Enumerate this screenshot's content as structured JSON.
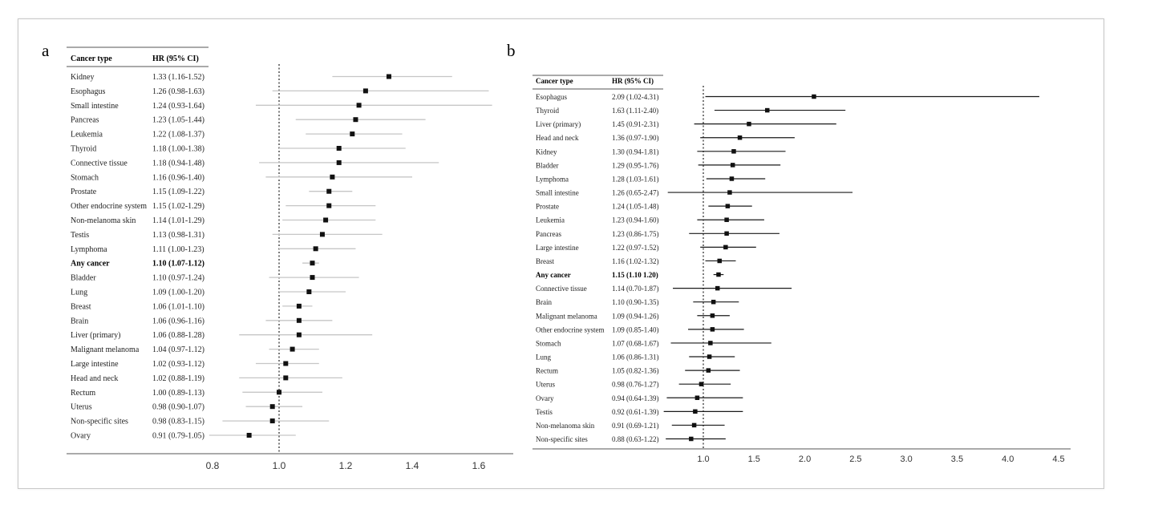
{
  "chart_data": [
    {
      "panel": "a",
      "type": "forest",
      "columns": [
        "Cancer type",
        "HR (95% CI)"
      ],
      "xlim": [
        0.7,
        1.65
      ],
      "xticks": [
        "0.8",
        "1.0",
        "1.2",
        "1.4",
        "1.6"
      ],
      "reference": 1.0,
      "rows": [
        {
          "label": "Kidney",
          "ci_text": "1.33 (1.16-1.52)",
          "hr": 1.33,
          "lo": 1.16,
          "hi": 1.52
        },
        {
          "label": "Esophagus",
          "ci_text": "1.26 (0.98-1.63)",
          "hr": 1.26,
          "lo": 0.98,
          "hi": 1.63
        },
        {
          "label": "Small intestine",
          "ci_text": "1.24 (0.93-1.64)",
          "hr": 1.24,
          "lo": 0.93,
          "hi": 1.64
        },
        {
          "label": "Pancreas",
          "ci_text": "1.23 (1.05-1.44)",
          "hr": 1.23,
          "lo": 1.05,
          "hi": 1.44
        },
        {
          "label": "Leukemia",
          "ci_text": "1.22 (1.08-1.37)",
          "hr": 1.22,
          "lo": 1.08,
          "hi": 1.37
        },
        {
          "label": "Thyroid",
          "ci_text": "1.18 (1.00-1.38)",
          "hr": 1.18,
          "lo": 1.0,
          "hi": 1.38
        },
        {
          "label": "Connective tissue",
          "ci_text": "1.18 (0.94-1.48)",
          "hr": 1.18,
          "lo": 0.94,
          "hi": 1.48
        },
        {
          "label": "Stomach",
          "ci_text": "1.16 (0.96-1.40)",
          "hr": 1.16,
          "lo": 0.96,
          "hi": 1.4
        },
        {
          "label": "Prostate",
          "ci_text": "1.15 (1.09-1.22)",
          "hr": 1.15,
          "lo": 1.09,
          "hi": 1.22
        },
        {
          "label": "Other endocrine system",
          "ci_text": "1.15 (1.02-1.29)",
          "hr": 1.15,
          "lo": 1.02,
          "hi": 1.29
        },
        {
          "label": "Non-melanoma skin",
          "ci_text": "1.14 (1.01-1.29)",
          "hr": 1.14,
          "lo": 1.01,
          "hi": 1.29
        },
        {
          "label": "Testis",
          "ci_text": "1.13 (0.98-1.31)",
          "hr": 1.13,
          "lo": 0.98,
          "hi": 1.31
        },
        {
          "label": "Lymphoma",
          "ci_text": "1.11 (1.00-1.23)",
          "hr": 1.11,
          "lo": 1.0,
          "hi": 1.23
        },
        {
          "label": "Any cancer",
          "ci_text": "1.10 (1.07-1.12)",
          "hr": 1.1,
          "lo": 1.07,
          "hi": 1.12,
          "bold": true
        },
        {
          "label": "Bladder",
          "ci_text": "1.10 (0.97-1.24)",
          "hr": 1.1,
          "lo": 0.97,
          "hi": 1.24
        },
        {
          "label": "Lung",
          "ci_text": "1.09 (1.00-1.20)",
          "hr": 1.09,
          "lo": 1.0,
          "hi": 1.2
        },
        {
          "label": "Breast",
          "ci_text": "1.06 (1.01-1.10)",
          "hr": 1.06,
          "lo": 1.01,
          "hi": 1.1
        },
        {
          "label": "Brain",
          "ci_text": "1.06 (0.96-1.16)",
          "hr": 1.06,
          "lo": 0.96,
          "hi": 1.16
        },
        {
          "label": "Liver (primary)",
          "ci_text": "1.06 (0.88-1.28)",
          "hr": 1.06,
          "lo": 0.88,
          "hi": 1.28
        },
        {
          "label": "Malignant melanoma",
          "ci_text": "1.04 (0.97-1.12)",
          "hr": 1.04,
          "lo": 0.97,
          "hi": 1.12
        },
        {
          "label": "Large intestine",
          "ci_text": "1.02 (0.93-1.12)",
          "hr": 1.02,
          "lo": 0.93,
          "hi": 1.12
        },
        {
          "label": "Head and neck",
          "ci_text": "1.02 (0.88-1.19)",
          "hr": 1.02,
          "lo": 0.88,
          "hi": 1.19
        },
        {
          "label": "Rectum",
          "ci_text": "1.00 (0.89-1.13)",
          "hr": 1.0,
          "lo": 0.89,
          "hi": 1.13
        },
        {
          "label": "Uterus",
          "ci_text": "0.98 (0.90-1.07)",
          "hr": 0.98,
          "lo": 0.9,
          "hi": 1.07
        },
        {
          "label": "Non-specific sites",
          "ci_text": "0.98 (0.83-1.15)",
          "hr": 0.98,
          "lo": 0.83,
          "hi": 1.15
        },
        {
          "label": "Ovary",
          "ci_text": "0.91 (0.79-1.05)",
          "hr": 0.91,
          "lo": 0.79,
          "hi": 1.05
        }
      ]
    },
    {
      "panel": "b",
      "type": "forest",
      "columns": [
        "Cancer type",
        "HR (95% CI)"
      ],
      "xlim": [
        0.65,
        4.5
      ],
      "xticks": [
        "1.0",
        "1.5",
        "2.0",
        "2.5",
        "3.0",
        "3.5",
        "4.0",
        "4.5"
      ],
      "reference": 1.0,
      "rows": [
        {
          "label": "Esophagus",
          "ci_text": "2.09 (1.02-4.31)",
          "hr": 2.09,
          "lo": 1.02,
          "hi": 4.31
        },
        {
          "label": "Thyroid",
          "ci_text": "1.63 (1.11-2.40)",
          "hr": 1.63,
          "lo": 1.11,
          "hi": 2.4
        },
        {
          "label": "Liver (primary)",
          "ci_text": "1.45 (0.91-2.31)",
          "hr": 1.45,
          "lo": 0.91,
          "hi": 2.31
        },
        {
          "label": "Head and neck",
          "ci_text": "1.36 (0.97-1.90)",
          "hr": 1.36,
          "lo": 0.97,
          "hi": 1.9
        },
        {
          "label": "Kidney",
          "ci_text": "1.30 (0.94-1.81)",
          "hr": 1.3,
          "lo": 0.94,
          "hi": 1.81
        },
        {
          "label": "Bladder",
          "ci_text": "1.29 (0.95-1.76)",
          "hr": 1.29,
          "lo": 0.95,
          "hi": 1.76
        },
        {
          "label": "Lymphoma",
          "ci_text": "1.28 (1.03-1.61)",
          "hr": 1.28,
          "lo": 1.03,
          "hi": 1.61
        },
        {
          "label": "Small intestine",
          "ci_text": "1.26 (0.65-2.47)",
          "hr": 1.26,
          "lo": 0.65,
          "hi": 2.47
        },
        {
          "label": "Prostate",
          "ci_text": "1.24 (1.05-1.48)",
          "hr": 1.24,
          "lo": 1.05,
          "hi": 1.48
        },
        {
          "label": "Leukemia",
          "ci_text": "1.23 (0.94-1.60)",
          "hr": 1.23,
          "lo": 0.94,
          "hi": 1.6
        },
        {
          "label": "Pancreas",
          "ci_text": "1.23 (0.86-1.75)",
          "hr": 1.23,
          "lo": 0.86,
          "hi": 1.75
        },
        {
          "label": "Large intestine",
          "ci_text": "1.22 (0.97-1.52)",
          "hr": 1.22,
          "lo": 0.97,
          "hi": 1.52
        },
        {
          "label": "Breast",
          "ci_text": "1.16 (1.02-1.32)",
          "hr": 1.16,
          "lo": 1.02,
          "hi": 1.32
        },
        {
          "label": "Any cancer",
          "ci_text": "1.15 (1.10 1.20)",
          "hr": 1.15,
          "lo": 1.1,
          "hi": 1.2,
          "bold": true
        },
        {
          "label": "Connective tissue",
          "ci_text": "1.14 (0.70-1.87)",
          "hr": 1.14,
          "lo": 0.7,
          "hi": 1.87
        },
        {
          "label": "Brain",
          "ci_text": "1.10 (0.90-1.35)",
          "hr": 1.1,
          "lo": 0.9,
          "hi": 1.35
        },
        {
          "label": "Malignant melanoma",
          "ci_text": "1.09 (0.94-1.26)",
          "hr": 1.09,
          "lo": 0.94,
          "hi": 1.26
        },
        {
          "label": "Other endocrine system",
          "ci_text": "1.09 (0.85-1.40)",
          "hr": 1.09,
          "lo": 0.85,
          "hi": 1.4
        },
        {
          "label": "Stomach",
          "ci_text": "1.07 (0.68-1.67)",
          "hr": 1.07,
          "lo": 0.68,
          "hi": 1.67
        },
        {
          "label": "Lung",
          "ci_text": "1.06 (0.86-1.31)",
          "hr": 1.06,
          "lo": 0.86,
          "hi": 1.31
        },
        {
          "label": "Rectum",
          "ci_text": "1.05 (0.82-1.36)",
          "hr": 1.05,
          "lo": 0.82,
          "hi": 1.36
        },
        {
          "label": "Uterus",
          "ci_text": "0.98 (0.76-1.27)",
          "hr": 0.98,
          "lo": 0.76,
          "hi": 1.27
        },
        {
          "label": "Ovary",
          "ci_text": "0.94 (0.64-1.39)",
          "hr": 0.94,
          "lo": 0.64,
          "hi": 1.39
        },
        {
          "label": "Testis",
          "ci_text": "0.92 (0.61-1.39)",
          "hr": 0.92,
          "lo": 0.61,
          "hi": 1.39
        },
        {
          "label": "Non-melanoma skin",
          "ci_text": "0.91 (0.69-1.21)",
          "hr": 0.91,
          "lo": 0.69,
          "hi": 1.21
        },
        {
          "label": "Non-specific sites",
          "ci_text": "0.88 (0.63-1.22)",
          "hr": 0.88,
          "lo": 0.63,
          "hi": 1.22
        }
      ]
    }
  ],
  "colors": {
    "ci_line_a": "#c6c6c6",
    "ci_line_b": "#1a1a1a",
    "marker": "#111111",
    "reference_line": "#333333"
  }
}
